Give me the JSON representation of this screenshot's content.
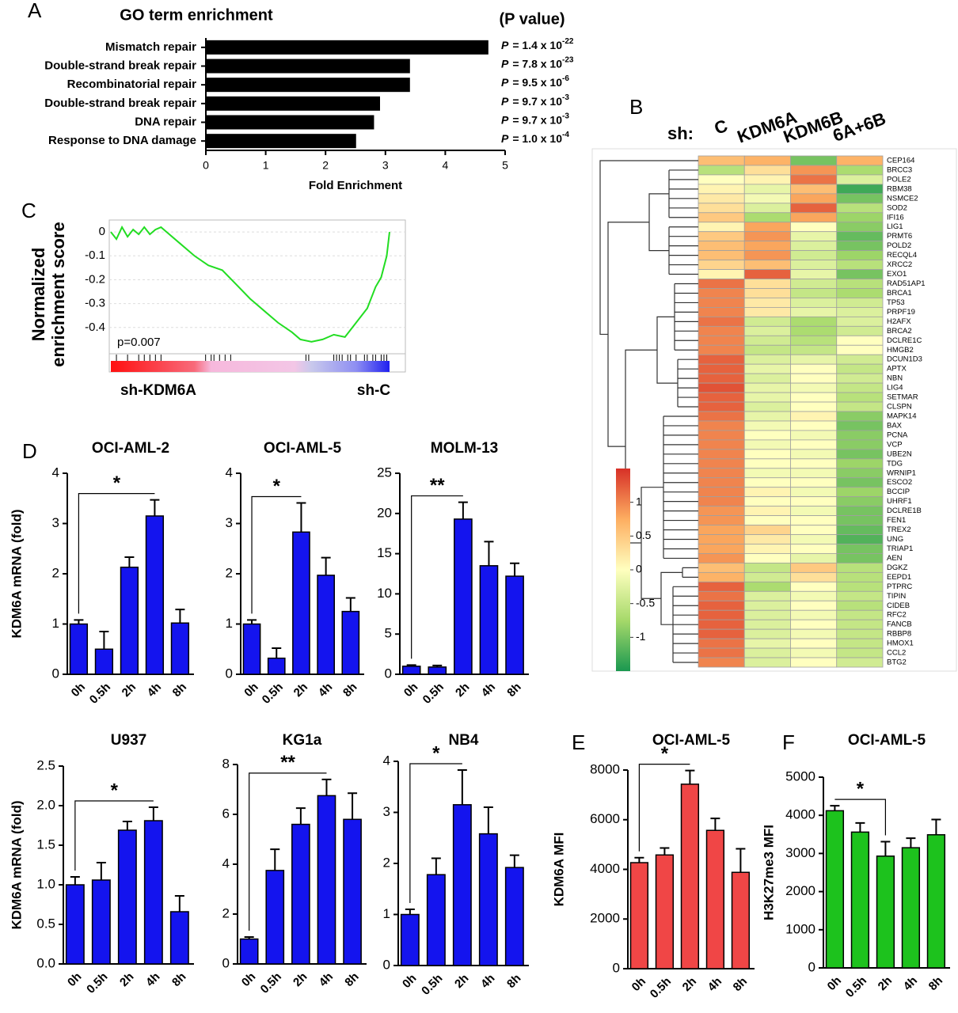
{
  "chart_data": [
    {
      "type": "bar",
      "orientation": "horizontal",
      "panel": "A",
      "title": "GO term enrichment",
      "categories": [
        "Mismatch repair",
        "Double-strand break repair",
        "Recombinatorial repair",
        "Double-strand break repair",
        "DNA repair",
        "Response to DNA damage"
      ],
      "values": [
        4.72,
        3.41,
        3.41,
        2.91,
        2.81,
        2.51
      ],
      "color": "#000000",
      "xlim": [
        0,
        5
      ],
      "xticks": [
        0,
        1,
        2,
        3,
        4,
        5
      ],
      "xlabel": "Fold Enrichment",
      "annotation_title": "(P value)",
      "p_symbol": "P",
      "p_labels": [
        {
          "text": "= 1.4 x 10",
          "exp": "-22"
        },
        {
          "text": "= 7.8 x 10",
          "exp": "-23"
        },
        {
          "text": "= 9.5 x 10",
          "exp": "-6"
        },
        {
          "text": "= 9.7 x 10",
          "exp": "-3"
        },
        {
          "text": "= 9.7 x 10",
          "exp": "-3"
        },
        {
          "text": "= 1.0 x 10",
          "exp": "-4"
        }
      ]
    },
    {
      "type": "heatmap",
      "panel": "B",
      "column_prefix": "sh:",
      "columns": [
        "C",
        "KDM6A",
        "KDM6B",
        "6A+6B"
      ],
      "rows": [
        "CEP164",
        "BRCC3",
        "POLE2",
        "RBM38",
        "NSMCE2",
        "SOD2",
        "IFI16",
        "LIG1",
        "PRMT6",
        "POLD2",
        "RECQL4",
        "XRCC2",
        "EXO1",
        "RAD51AP1",
        "BRCA1",
        "TP53",
        "PRPF19",
        "H2AFX",
        "BRCA2",
        "DCLRE1C",
        "HMGB2",
        "DCUN1D3",
        "APTX",
        "NBN",
        "LIG4",
        "SETMAR",
        "CLSPN",
        "MAPK14",
        "BAX",
        "PCNA",
        "VCP",
        "UBE2N",
        "TDG",
        "WRNIP1",
        "ESCO2",
        "BCCIP",
        "UHRF1",
        "DCLRE1B",
        "FEN1",
        "TREX2",
        "UNG",
        "TRIAP1",
        "AEN",
        "DGKZ",
        "EEPD1",
        "PTPRC",
        "TIPIN",
        "CIDEB",
        "RFC2",
        "FANCB",
        "RBBP8",
        "HMOX1",
        "CCL2",
        "BTG2"
      ],
      "values": [
        [
          0.6,
          0.7,
          -1.0,
          0.7
        ],
        [
          -0.6,
          0.3,
          0.9,
          -0.7
        ],
        [
          0.0,
          0.1,
          1.1,
          -0.3
        ],
        [
          0.1,
          -0.2,
          0.6,
          -1.3
        ],
        [
          0.2,
          -0.1,
          0.8,
          -1.0
        ],
        [
          0.3,
          -0.3,
          1.2,
          -0.6
        ],
        [
          0.5,
          -0.7,
          0.8,
          -0.8
        ],
        [
          0.1,
          0.8,
          0.0,
          -0.9
        ],
        [
          0.5,
          0.9,
          -0.2,
          -1.1
        ],
        [
          0.6,
          0.8,
          -0.3,
          -1.0
        ],
        [
          0.6,
          0.9,
          -0.4,
          -0.8
        ],
        [
          0.4,
          0.6,
          -0.3,
          -0.6
        ],
        [
          0.1,
          1.2,
          -0.2,
          -1.0
        ],
        [
          1.1,
          0.3,
          -0.4,
          -0.6
        ],
        [
          1.0,
          0.3,
          -0.5,
          -0.7
        ],
        [
          1.0,
          0.2,
          -0.3,
          -0.4
        ],
        [
          1.0,
          0.2,
          -0.2,
          -0.3
        ],
        [
          1.1,
          -0.4,
          -0.7,
          -0.3
        ],
        [
          1.0,
          -0.3,
          -0.7,
          -0.4
        ],
        [
          1.0,
          -0.4,
          -0.6,
          0.0
        ],
        [
          1.0,
          -0.5,
          -0.5,
          0.0
        ],
        [
          1.2,
          -0.3,
          -0.2,
          -0.4
        ],
        [
          1.2,
          -0.2,
          0.0,
          -0.5
        ],
        [
          1.2,
          -0.3,
          0.0,
          -0.4
        ],
        [
          1.3,
          -0.2,
          -0.1,
          -0.5
        ],
        [
          1.2,
          -0.2,
          0.0,
          -0.6
        ],
        [
          1.2,
          -0.3,
          0.0,
          -0.5
        ],
        [
          1.1,
          -0.2,
          0.1,
          -0.9
        ],
        [
          1.0,
          -0.1,
          0.0,
          -1.0
        ],
        [
          1.0,
          0.0,
          -0.1,
          -0.9
        ],
        [
          1.0,
          -0.1,
          0.0,
          -0.9
        ],
        [
          1.0,
          0.0,
          -0.1,
          -1.0
        ],
        [
          1.0,
          0.0,
          0.0,
          -0.8
        ],
        [
          1.0,
          -0.1,
          -0.1,
          -0.9
        ],
        [
          1.0,
          0.0,
          0.0,
          -1.0
        ],
        [
          1.0,
          0.1,
          -0.1,
          -0.8
        ],
        [
          1.0,
          0.0,
          0.0,
          -0.9
        ],
        [
          0.9,
          0.1,
          -0.1,
          -1.0
        ],
        [
          0.9,
          0.0,
          0.0,
          -1.0
        ],
        [
          0.8,
          0.4,
          0.0,
          -1.1
        ],
        [
          0.8,
          0.2,
          -0.1,
          -1.2
        ],
        [
          0.8,
          0.1,
          0.0,
          -1.0
        ],
        [
          0.9,
          0.0,
          -0.2,
          -1.0
        ],
        [
          0.6,
          -0.5,
          0.5,
          -0.6
        ],
        [
          0.7,
          -0.4,
          0.3,
          -0.6
        ],
        [
          1.2,
          -0.7,
          0.0,
          -0.6
        ],
        [
          1.1,
          -0.3,
          -0.1,
          -0.5
        ],
        [
          1.2,
          -0.3,
          0.0,
          -0.6
        ],
        [
          1.2,
          -0.3,
          -0.1,
          -0.5
        ],
        [
          1.2,
          -0.3,
          0.0,
          -0.5
        ],
        [
          1.2,
          -0.3,
          -0.1,
          -0.5
        ],
        [
          1.1,
          -0.2,
          0.0,
          -0.5
        ],
        [
          1.1,
          -0.3,
          -0.1,
          -0.5
        ],
        [
          1.0,
          -0.3,
          0.0,
          -0.4
        ]
      ],
      "zlim": [
        -1.5,
        1.5
      ],
      "colormap": [
        "#1a9850",
        "#a6d96a",
        "#ffffbf",
        "#fdae61",
        "#d73027"
      ],
      "colorbar_ticks": [
        1,
        0.5,
        0,
        -0.5,
        -1
      ]
    },
    {
      "type": "line",
      "panel": "C",
      "ylabel": [
        "Normalized",
        "enrichment score"
      ],
      "x": [
        0,
        2,
        4,
        6,
        8,
        10,
        12,
        14,
        16,
        18,
        20,
        25,
        30,
        35,
        40,
        45,
        50,
        55,
        60,
        65,
        68,
        72,
        76,
        80,
        84,
        88,
        92,
        95,
        97,
        99,
        100
      ],
      "values": [
        0,
        -0.03,
        0.02,
        -0.02,
        0.01,
        -0.01,
        0.02,
        -0.01,
        0.01,
        0.02,
        0,
        -0.05,
        -0.1,
        -0.14,
        -0.16,
        -0.22,
        -0.28,
        -0.33,
        -0.38,
        -0.42,
        -0.45,
        -0.46,
        -0.45,
        -0.43,
        -0.44,
        -0.38,
        -0.32,
        -0.23,
        -0.19,
        -0.1,
        0
      ],
      "color": "#22dd22",
      "xlim": [
        0,
        100
      ],
      "ylim": [
        -0.51,
        0.05
      ],
      "yticks": [
        0,
        -0.1,
        -0.2,
        -0.3,
        -0.4
      ],
      "grid": true,
      "annotation": "p=0.007",
      "hits": [
        2,
        6,
        10,
        12,
        14,
        16,
        18,
        34,
        36,
        37,
        39,
        41,
        43,
        70,
        71,
        80,
        81,
        82,
        83,
        85,
        86,
        88,
        91,
        92,
        94,
        95,
        97,
        98,
        99
      ],
      "left_label": "sh-KDM6A",
      "right_label": "sh-C"
    },
    {
      "type": "bar",
      "panel": "D",
      "title": "OCI-AML-2",
      "ylabel": "KDM6A mRNA (fold)",
      "categories": [
        "0h",
        "0.5h",
        "2h",
        "4h",
        "8h"
      ],
      "values": [
        1.0,
        0.5,
        2.13,
        3.15,
        1.02
      ],
      "errors": [
        0.08,
        0.35,
        0.2,
        0.32,
        0.27
      ],
      "color": "#1414ee",
      "ylim": [
        0,
        4
      ],
      "yticks": [
        0,
        1,
        2,
        3,
        4
      ],
      "significance": {
        "between": [
          "0h",
          "4h"
        ],
        "label": "*"
      }
    },
    {
      "type": "bar",
      "title": "OCI-AML-5",
      "categories": [
        "0h",
        "0.5h",
        "2h",
        "4h",
        "8h"
      ],
      "values": [
        1.0,
        0.32,
        2.83,
        1.97,
        1.25
      ],
      "errors": [
        0.08,
        0.2,
        0.58,
        0.35,
        0.27
      ],
      "color": "#1414ee",
      "ylim": [
        0,
        4
      ],
      "yticks": [
        0,
        1,
        2,
        3,
        4
      ],
      "significance": {
        "between": [
          "0h",
          "2h"
        ],
        "label": "*"
      }
    },
    {
      "type": "bar",
      "title": "MOLM-13",
      "categories": [
        "0h",
        "0.5h",
        "2h",
        "4h",
        "8h"
      ],
      "values": [
        1.0,
        0.9,
        19.3,
        13.5,
        12.2
      ],
      "errors": [
        0.15,
        0.2,
        2.1,
        3.0,
        1.6
      ],
      "color": "#1414ee",
      "ylim": [
        0,
        25
      ],
      "yticks": [
        0,
        5,
        10,
        15,
        20,
        25
      ],
      "significance": {
        "between": [
          "0h",
          "2h"
        ],
        "label": "**"
      }
    },
    {
      "type": "bar",
      "title": "U937",
      "ylabel": "KDM6A mRNA (fold)",
      "categories": [
        "0h",
        "0.5h",
        "2h",
        "4h",
        "8h"
      ],
      "values": [
        1.0,
        1.06,
        1.69,
        1.81,
        0.66
      ],
      "errors": [
        0.1,
        0.22,
        0.11,
        0.17,
        0.2
      ],
      "color": "#1414ee",
      "ylim": [
        0,
        2.5
      ],
      "yticks": [
        {
          "value": 0,
          "label": "0.0"
        },
        0.5,
        {
          "value": 1,
          "label": "1.0"
        },
        1.5,
        {
          "value": 2,
          "label": "2.0"
        },
        2.5
      ],
      "significance": {
        "between": [
          "0h",
          "4h"
        ],
        "label": "*"
      }
    },
    {
      "type": "bar",
      "title": "KG1a",
      "categories": [
        "0h",
        "0.5h",
        "2h",
        "4h",
        "8h"
      ],
      "values": [
        1.0,
        3.75,
        5.6,
        6.75,
        5.8
      ],
      "errors": [
        0.08,
        0.85,
        0.65,
        0.65,
        1.05
      ],
      "color": "#1414ee",
      "ylim": [
        0,
        8
      ],
      "yticks": [
        0,
        2,
        4,
        6,
        8
      ],
      "significance": {
        "between": [
          "0h",
          "4h"
        ],
        "label": "**"
      }
    },
    {
      "type": "bar",
      "title": "NB4",
      "categories": [
        "0h",
        "0.5h",
        "2h",
        "4h",
        "8h"
      ],
      "values": [
        1.0,
        1.78,
        3.15,
        2.58,
        1.92
      ],
      "errors": [
        0.1,
        0.32,
        0.68,
        0.52,
        0.24
      ],
      "color": "#1414ee",
      "ylim": [
        0,
        4
      ],
      "yticks": [
        0,
        1,
        2,
        3,
        4
      ],
      "significance": {
        "between": [
          "0h",
          "2h"
        ],
        "label": "*"
      }
    },
    {
      "type": "bar",
      "panel": "E",
      "title": "OCI-AML-5",
      "ylabel": "KDM6A MFI",
      "categories": [
        "0h",
        "0.5h",
        "2h",
        "4h",
        "8h"
      ],
      "values": [
        4270,
        4580,
        7430,
        5570,
        3880
      ],
      "errors": [
        200,
        280,
        550,
        480,
        950
      ],
      "color": "#f04646",
      "ylim": [
        0,
        8000
      ],
      "yticks": [
        0,
        2000,
        4000,
        6000,
        8000
      ],
      "significance": {
        "between": [
          "0h",
          "2h"
        ],
        "label": "*"
      }
    },
    {
      "type": "bar",
      "panel": "F",
      "title": "OCI-AML-5",
      "ylabel": "H3K27me3 MFI",
      "categories": [
        "0h",
        "0.5h",
        "2h",
        "4h",
        "8h"
      ],
      "values": [
        4120,
        3560,
        2930,
        3150,
        3490
      ],
      "errors": [
        130,
        240,
        380,
        250,
        400
      ],
      "color": "#1dc21d",
      "ylim": [
        0,
        5000
      ],
      "yticks": [
        0,
        1000,
        2000,
        3000,
        4000,
        5000
      ],
      "significance": {
        "between": [
          "0h",
          "2h"
        ],
        "label": "*"
      }
    }
  ]
}
